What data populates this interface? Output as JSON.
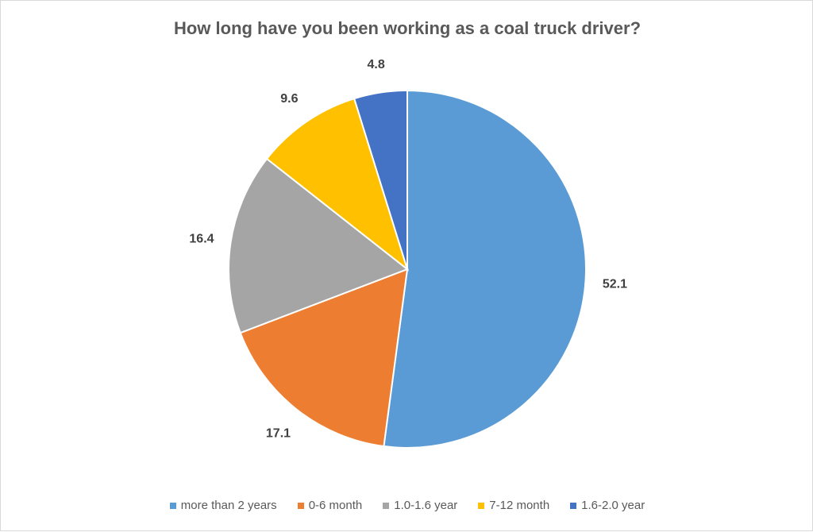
{
  "chart_data": {
    "type": "pie",
    "title": "How long have you been working as a coal truck driver?",
    "categories": [
      "more than 2 years",
      "0-6 month",
      "1.0-1.6 year",
      "7-12 month",
      "1.6-2.0 year"
    ],
    "values": [
      52.1,
      17.1,
      16.4,
      9.6,
      4.8
    ],
    "value_labels": [
      "52.1",
      "17.1",
      "16.4",
      "9.6",
      "4.8"
    ],
    "colors": [
      "#5b9bd5",
      "#ed7d31",
      "#a5a5a5",
      "#ffc000",
      "#4472c4"
    ],
    "start_angle_deg": 0,
    "direction": "clockwise",
    "legend_placement": "bottom"
  }
}
